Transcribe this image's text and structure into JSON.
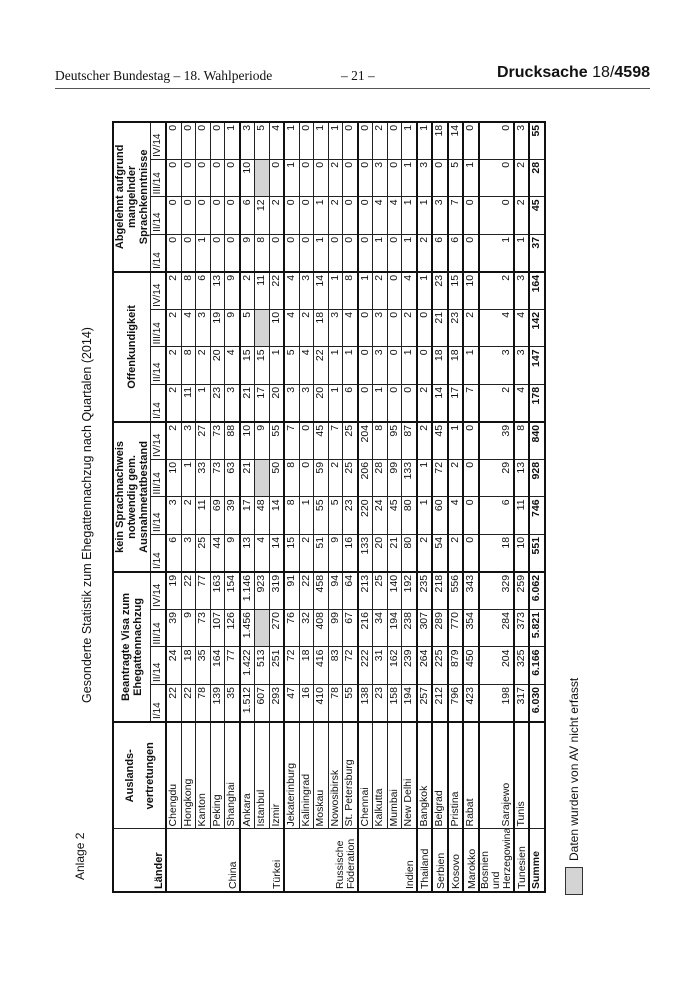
{
  "header": {
    "left": "Deutscher Bundestag – 18. Wahlperiode",
    "center": "– 21 –",
    "right_prefix": "Drucksache",
    "right_number_a": "18/",
    "right_number_b": "4598"
  },
  "annex": "Anlage 2",
  "title": "Gesonderte Statistik zum Ehegattennachzug nach Quartalen (2014)",
  "table": {
    "col_land": "Länder",
    "col_post": "Auslands-\nvertretungen",
    "col_post_1": "Auslands-",
    "col_post_2": "vertretungen",
    "groups": [
      "Beantragte Visa zum Ehegattennachzug",
      "kein Sprachnachweis notwendig gem. Ausnahmetatbestand",
      "Offenkundigkeit",
      "Abgelehnt aufgrund mangelnder Sprachkenntnisse"
    ],
    "quarters": [
      "I/14",
      "II/14",
      "III/14",
      "IV/14"
    ],
    "countries": [
      {
        "land": "China",
        "posts": [
          {
            "name": "Chengdu",
            "v": [
              "22",
              "24",
              "39",
              "19",
              "6",
              "3",
              "10",
              "2",
              "2",
              "2",
              "2",
              "2",
              "0",
              "0",
              "0",
              "0"
            ]
          },
          {
            "name": "Hongkong",
            "v": [
              "22",
              "18",
              "9",
              "22",
              "3",
              "2",
              "1",
              "3",
              "11",
              "8",
              "4",
              "8",
              "0",
              "0",
              "0",
              "0"
            ]
          },
          {
            "name": "Kanton",
            "v": [
              "78",
              "35",
              "73",
              "77",
              "25",
              "11",
              "33",
              "27",
              "1",
              "2",
              "3",
              "6",
              "1",
              "0",
              "0",
              "0"
            ]
          },
          {
            "name": "Peking",
            "v": [
              "139",
              "164",
              "107",
              "163",
              "44",
              "69",
              "73",
              "73",
              "23",
              "20",
              "19",
              "13",
              "0",
              "0",
              "0",
              "0"
            ]
          },
          {
            "name": "Shanghai",
            "v": [
              "35",
              "77",
              "126",
              "154",
              "9",
              "39",
              "63",
              "88",
              "3",
              "4",
              "9",
              "9",
              "0",
              "0",
              "0",
              "1"
            ]
          }
        ]
      },
      {
        "land": "Türkei",
        "posts": [
          {
            "name": "Ankara",
            "v": [
              "1.512",
              "1.422",
              "1.456",
              "1.146",
              "13",
              "17",
              "21",
              "10",
              "21",
              "15",
              "5",
              "2",
              "9",
              "6",
              "10",
              "3"
            ]
          },
          {
            "name": "Istanbul",
            "v": [
              "607",
              "513",
              null,
              "923",
              "4",
              "48",
              null,
              "9",
              "17",
              "15",
              null,
              "11",
              "8",
              "12",
              null,
              "5"
            ]
          },
          {
            "name": "Izmir",
            "v": [
              "293",
              "251",
              "270",
              "319",
              "14",
              "14",
              "50",
              "55",
              "20",
              "1",
              "10",
              "22",
              "0",
              "2",
              "0",
              "4"
            ]
          }
        ]
      },
      {
        "land": "Russische Föderation",
        "posts": [
          {
            "name": "Jekaterinburg",
            "v": [
              "47",
              "72",
              "76",
              "91",
              "15",
              "8",
              "8",
              "7",
              "3",
              "5",
              "4",
              "4",
              "0",
              "0",
              "1",
              "1"
            ]
          },
          {
            "name": "Kaliningrad",
            "v": [
              "16",
              "18",
              "32",
              "22",
              "2",
              "1",
              "0",
              "0",
              "3",
              "4",
              "2",
              "3",
              "0",
              "0",
              "0",
              "0"
            ]
          },
          {
            "name": "Moskau",
            "v": [
              "410",
              "416",
              "408",
              "458",
              "51",
              "55",
              "59",
              "45",
              "20",
              "22",
              "18",
              "14",
              "1",
              "1",
              "0",
              "1"
            ]
          },
          {
            "name": "Nowosibirsk",
            "v": [
              "78",
              "83",
              "99",
              "94",
              "9",
              "5",
              "2",
              "7",
              "1",
              "1",
              "3",
              "1",
              "0",
              "2",
              "2",
              "1"
            ]
          },
          {
            "name": "St. Petersburg",
            "v": [
              "55",
              "72",
              "67",
              "64",
              "16",
              "23",
              "25",
              "25",
              "6",
              "1",
              "4",
              "8",
              "0",
              "0",
              "0",
              "0"
            ]
          }
        ]
      },
      {
        "land": "Indien",
        "posts": [
          {
            "name": "Chennai",
            "v": [
              "138",
              "222",
              "216",
              "213",
              "133",
              "220",
              "206",
              "204",
              "0",
              "0",
              "0",
              "1",
              "0",
              "0",
              "0",
              "0"
            ]
          },
          {
            "name": "Kalkutta",
            "v": [
              "23",
              "31",
              "34",
              "25",
              "20",
              "24",
              "28",
              "8",
              "1",
              "3",
              "3",
              "2",
              "1",
              "4",
              "3",
              "2"
            ]
          },
          {
            "name": "Mumbai",
            "v": [
              "158",
              "162",
              "194",
              "140",
              "21",
              "45",
              "99",
              "95",
              "0",
              "0",
              "0",
              "0",
              "0",
              "4",
              "0",
              "0"
            ]
          },
          {
            "name": "New Delhi",
            "v": [
              "194",
              "239",
              "238",
              "192",
              "80",
              "80",
              "133",
              "87",
              "0",
              "1",
              "2",
              "4",
              "1",
              "1",
              "1",
              "1"
            ]
          }
        ]
      },
      {
        "land": "Thailand",
        "posts": [
          {
            "name": "Bangkok",
            "v": [
              "257",
              "264",
              "307",
              "235",
              "2",
              "1",
              "1",
              "2",
              "2",
              "0",
              "0",
              "1",
              "2",
              "1",
              "3",
              "1"
            ]
          }
        ]
      },
      {
        "land": "Serbien",
        "posts": [
          {
            "name": "Belgrad",
            "v": [
              "212",
              "225",
              "289",
              "218",
              "54",
              "60",
              "72",
              "45",
              "14",
              "18",
              "21",
              "23",
              "6",
              "3",
              "0",
              "18"
            ]
          }
        ]
      },
      {
        "land": "Kosovo",
        "posts": [
          {
            "name": "Pristina",
            "v": [
              "796",
              "879",
              "770",
              "556",
              "2",
              "4",
              "2",
              "1",
              "17",
              "18",
              "23",
              "15",
              "6",
              "7",
              "5",
              "14"
            ]
          }
        ]
      },
      {
        "land": "Marokko",
        "posts": [
          {
            "name": "Rabat",
            "v": [
              "423",
              "450",
              "354",
              "343",
              "0",
              "0",
              "0",
              "0",
              "7",
              "1",
              "2",
              "10",
              "0",
              "0",
              "1",
              "0"
            ]
          }
        ]
      },
      {
        "land": "Bosnien und Herzegowina",
        "posts": [
          {
            "name": "Sarajewo",
            "v": [
              "198",
              "204",
              "284",
              "329",
              "18",
              "6",
              "29",
              "39",
              "2",
              "3",
              "4",
              "2",
              "1",
              "0",
              "0",
              "0"
            ]
          }
        ]
      },
      {
        "land": "Tunesien",
        "posts": [
          {
            "name": "Tunis",
            "v": [
              "317",
              "325",
              "373",
              "259",
              "10",
              "11",
              "13",
              "8",
              "4",
              "3",
              "4",
              "3",
              "1",
              "2",
              "2",
              "3"
            ]
          }
        ]
      }
    ],
    "sum": {
      "label": "Summe",
      "v": [
        "6.030",
        "6.166",
        "5.821",
        "6.062",
        "551",
        "746",
        "928",
        "840",
        "178",
        "147",
        "142",
        "164",
        "37",
        "45",
        "28",
        "55"
      ]
    }
  },
  "legend": {
    "label": "Daten wurden von AV nicht erfasst",
    "color": "#d4d4d4"
  }
}
